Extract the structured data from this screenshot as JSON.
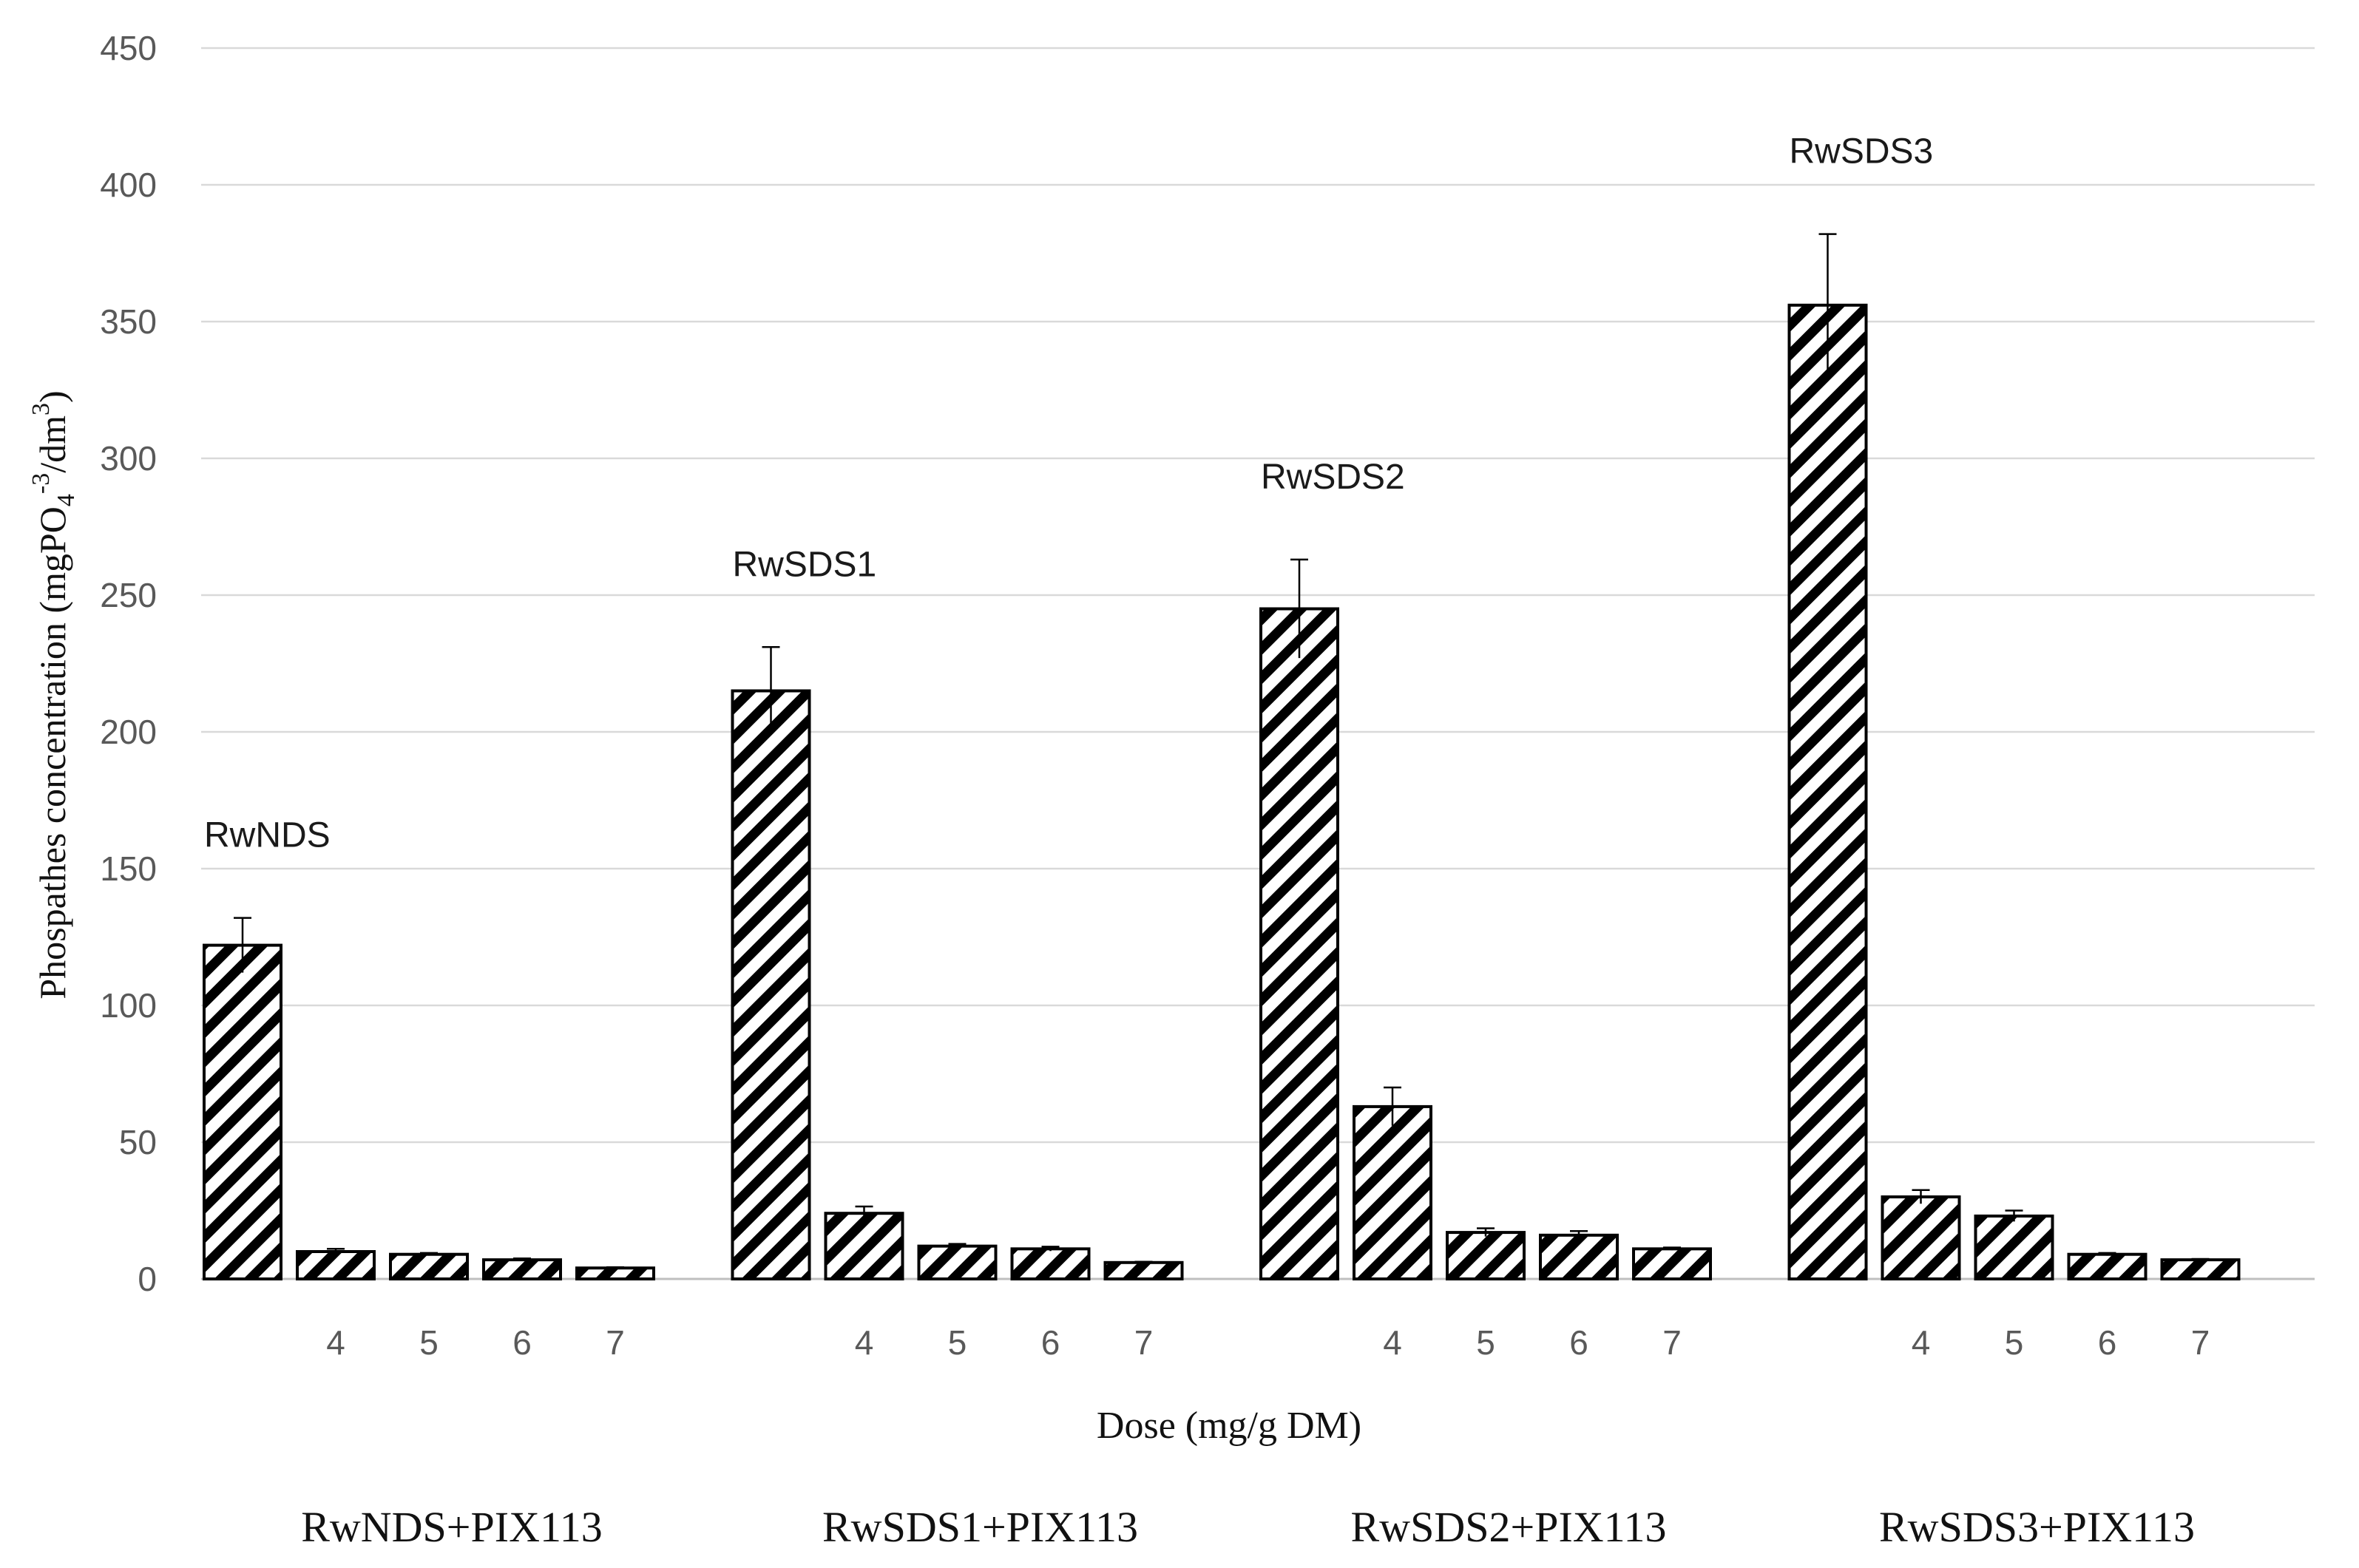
{
  "chart_data": {
    "type": "bar",
    "ylabel": {
      "main": "Phospathes concentration (mgPO",
      "sub": "4",
      "sup": "-3",
      "mid": "/dm",
      "sup2": "3",
      "end": ")"
    },
    "xlabel": "Dose (mg/g DM)",
    "ylim": [
      0,
      450
    ],
    "yticks": [
      0,
      50,
      100,
      150,
      200,
      250,
      300,
      350,
      400,
      450
    ],
    "grid": true,
    "pattern": "diagonal-hatch",
    "groups": [
      {
        "name": "RwNDS+PIX113",
        "first_bar_label": "RwNDS",
        "dose_labels": [
          "",
          "4",
          "5",
          "6",
          "7"
        ],
        "values": [
          122,
          10,
          9,
          7,
          4
        ],
        "errors": [
          10,
          1,
          0.5,
          0.5,
          0.3
        ]
      },
      {
        "name": "RwSDS1+PIX113",
        "first_bar_label": "RwSDS1",
        "dose_labels": [
          "",
          "4",
          "5",
          "6",
          "7"
        ],
        "values": [
          215,
          24,
          12,
          11,
          6
        ],
        "errors": [
          16,
          2.5,
          0.8,
          0.8,
          0.3
        ]
      },
      {
        "name": "RwSDS2+PIX113",
        "first_bar_label": "RwSDS2",
        "dose_labels": [
          "",
          "4",
          "5",
          "6",
          "7"
        ],
        "values": [
          245,
          63,
          17,
          16,
          11
        ],
        "errors": [
          18,
          7,
          1.5,
          1.5,
          0.5
        ]
      },
      {
        "name": "RwSDS3+PIX113",
        "first_bar_label": "RwSDS3",
        "dose_labels": [
          "",
          "4",
          "5",
          "6",
          "7"
        ],
        "values": [
          356,
          30,
          23,
          9,
          7
        ],
        "errors": [
          26,
          2.5,
          2,
          0.5,
          0.3
        ]
      }
    ]
  }
}
